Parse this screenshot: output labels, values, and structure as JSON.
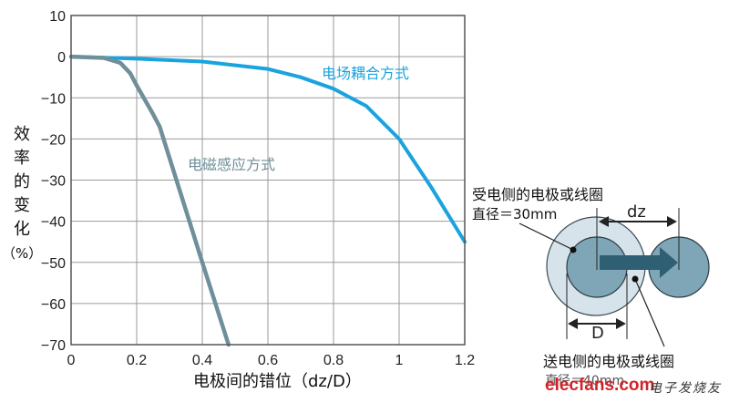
{
  "chart_data": {
    "type": "line",
    "title": "",
    "xlabel": "电极间的错位（dz/D）",
    "ylabel": [
      "效",
      "率",
      "的",
      "变",
      "化",
      "（%）"
    ],
    "xlim": [
      0,
      1.2
    ],
    "ylim": [
      -70,
      10
    ],
    "grid": true,
    "x_ticks": [
      "0",
      "0.2",
      "0.4",
      "0.6",
      "0.8",
      "1",
      "1.2"
    ],
    "y_ticks": [
      "10",
      "0",
      "−10",
      "−20",
      "−30",
      "−40",
      "−50",
      "−60",
      "−70"
    ],
    "series": [
      {
        "name": "电场耦合方式",
        "color": "#1aa3dd",
        "x": [
          0,
          0.2,
          0.4,
          0.6,
          0.7,
          0.8,
          0.9,
          1.0,
          1.1,
          1.2
        ],
        "y": [
          0,
          -0.5,
          -1.2,
          -3,
          -5,
          -7.8,
          -12,
          -20,
          -32,
          -45
        ]
      },
      {
        "name": "电磁感应方式",
        "color": "#6f8f9a",
        "x": [
          0,
          0.1,
          0.15,
          0.18,
          0.2,
          0.25,
          0.27,
          0.4,
          0.48
        ],
        "y": [
          0,
          -0.3,
          -1.5,
          -4,
          -7,
          -14,
          -17,
          -50,
          -70
        ]
      }
    ],
    "annotations": [
      {
        "text": "电场耦合方式",
        "x": 0.75,
        "y": -1.5,
        "color": "#1aa3dd"
      },
      {
        "text": "电磁感应方式",
        "x": 0.36,
        "y": -24.5,
        "color": "#6f8f9a"
      }
    ]
  },
  "diagram": {
    "receiver_label": "受电侧的电极或线圈",
    "receiver_diameter": "直径＝30mm",
    "transmitter_label": "送电侧的电极或线圈",
    "transmitter_diameter": "直径＝40mm",
    "dz_label": "dz",
    "d_label": "D",
    "colors": {
      "outer_circle": "#d6e3ea",
      "inner_circle": "#7fa6b6",
      "arrow": "#2f5f72"
    }
  },
  "watermark": {
    "brand": "elecfans.com",
    "cn": "电子发烧友"
  }
}
